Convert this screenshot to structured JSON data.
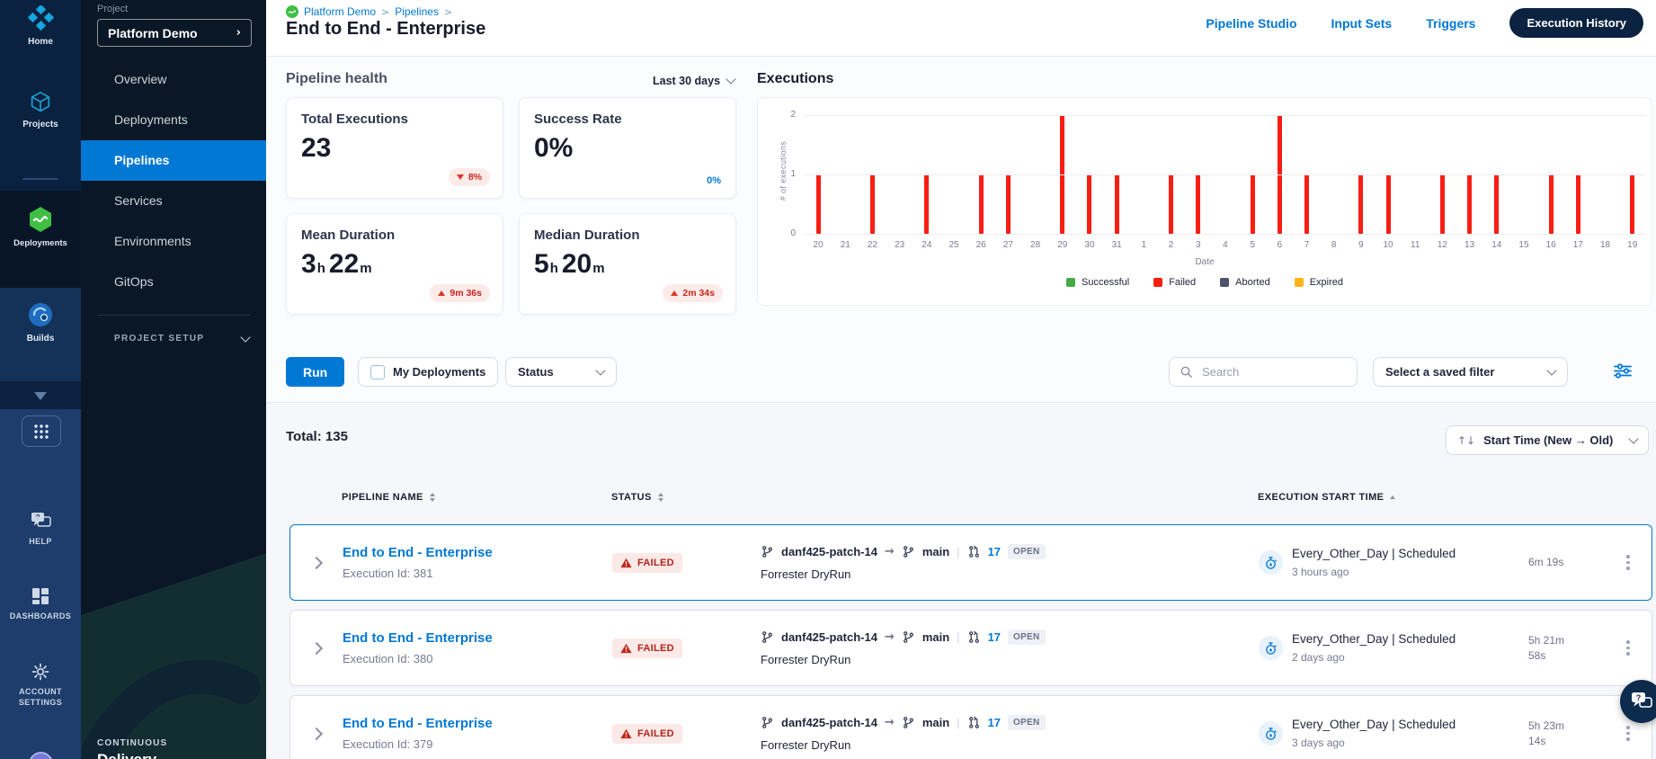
{
  "app": {
    "accent": "#0278d5",
    "failed_red": "#b3231a",
    "bar_red": "#f81e14"
  },
  "rail": {
    "items": [
      {
        "label": "Home",
        "icon": "harness-logo-icon"
      },
      {
        "label": "Projects",
        "icon": "projects-cube-icon"
      },
      {
        "label": "Deployments",
        "icon": "deployments-hexagon-icon"
      },
      {
        "label": "Builds",
        "icon": "builds-circle-icon"
      }
    ],
    "bottom_items": [
      {
        "label": "HELP",
        "icon": "help-chat-icon"
      },
      {
        "label": "DASHBOARDS",
        "icon": "dashboards-tiles-icon"
      },
      {
        "label": "ACCOUNT SETTINGS",
        "icon": "gear-icon"
      }
    ]
  },
  "sidebar": {
    "section_label": "Project",
    "project_selector": "Platform Demo",
    "items": [
      "Overview",
      "Deployments",
      "Pipelines",
      "Services",
      "Environments",
      "GitOps"
    ],
    "selected_item": "Pipelines",
    "project_setup_label": "PROJECT SETUP",
    "module_label": "CONTINUOUS",
    "module_name": "Delivery"
  },
  "header": {
    "breadcrumbs": [
      "Platform Demo",
      "Pipelines"
    ],
    "title": "End to End - Enterprise",
    "nav_links": [
      "Pipeline Studio",
      "Input Sets",
      "Triggers"
    ],
    "active_pill": "Execution History"
  },
  "health": {
    "title": "Pipeline health",
    "range": "Last 30 days",
    "cards": [
      {
        "label": "Total Executions",
        "value_parts": [
          [
            "23",
            ""
          ]
        ],
        "badge": {
          "dir": "down",
          "text": "8%"
        }
      },
      {
        "label": "Success Rate",
        "value_parts": [
          [
            "0%",
            ""
          ]
        ],
        "corner": "0%"
      },
      {
        "label": "Mean Duration",
        "value_parts": [
          [
            "3",
            "h"
          ],
          [
            "22",
            "m"
          ]
        ],
        "badge": {
          "dir": "up",
          "text": "9m 36s"
        }
      },
      {
        "label": "Median Duration",
        "value_parts": [
          [
            "5",
            "h"
          ],
          [
            "20",
            "m"
          ]
        ],
        "badge": {
          "dir": "up",
          "text": "2m 34s"
        }
      }
    ]
  },
  "chart_data": {
    "type": "bar",
    "title": "Executions",
    "xlabel": "Date",
    "ylabel": "# of executions",
    "ylim": [
      0,
      2
    ],
    "yticks": [
      0,
      1,
      2
    ],
    "grid": true,
    "legend_position": "bottom",
    "categories": [
      "20",
      "21",
      "22",
      "23",
      "24",
      "25",
      "26",
      "27",
      "28",
      "29",
      "30",
      "31",
      "1",
      "2",
      "3",
      "4",
      "5",
      "6",
      "7",
      "8",
      "9",
      "10",
      "11",
      "12",
      "13",
      "14",
      "15",
      "16",
      "17",
      "18",
      "19"
    ],
    "series": [
      {
        "name": "Failed",
        "color": "#f81e14",
        "values": [
          1,
          0,
          1,
          0,
          1,
          0,
          1,
          1,
          0,
          2,
          1,
          1,
          0,
          1,
          1,
          0,
          1,
          2,
          1,
          0,
          1,
          1,
          0,
          1,
          1,
          1,
          0,
          1,
          1,
          0,
          1
        ]
      }
    ],
    "legend": [
      {
        "label": "Successful",
        "color": "#42ab45"
      },
      {
        "label": "Failed",
        "color": "#f81e14"
      },
      {
        "label": "Aborted",
        "color": "#4f5368"
      },
      {
        "label": "Expired",
        "color": "#fcb519"
      }
    ]
  },
  "toolbar": {
    "run_label": "Run",
    "my_deployments_label": "My Deployments",
    "status_label": "Status",
    "search_placeholder": "Search",
    "saved_filter_label": "Select a saved filter"
  },
  "list": {
    "total_label": "Total: 135",
    "sort_label": "Start Time (New → Old)"
  },
  "table": {
    "columns": [
      {
        "label": "PIPELINE NAME",
        "sort": "both"
      },
      {
        "label": "STATUS",
        "sort": "both"
      },
      {
        "label": "EXECUTION START TIME",
        "sort": "asc"
      }
    ],
    "rows": [
      {
        "name": "End to End - Enterprise",
        "execution_id": "Execution Id: 381",
        "status": "FAILED",
        "source_branch": "danf425-patch-14",
        "target_branch": "main",
        "pr_number": "17",
        "pr_state": "OPEN",
        "tag": "Forrester DryRun",
        "trigger": "Every_Other_Day",
        "trigger_type": "Scheduled",
        "started": "3 hours ago",
        "duration_lines": [
          "6m 19s"
        ]
      },
      {
        "name": "End to End - Enterprise",
        "execution_id": "Execution Id: 380",
        "status": "FAILED",
        "source_branch": "danf425-patch-14",
        "target_branch": "main",
        "pr_number": "17",
        "pr_state": "OPEN",
        "tag": "Forrester DryRun",
        "trigger": "Every_Other_Day",
        "trigger_type": "Scheduled",
        "started": "2 days ago",
        "duration_lines": [
          "5h 21m",
          "58s"
        ]
      },
      {
        "name": "End to End - Enterprise",
        "execution_id": "Execution Id: 379",
        "status": "FAILED",
        "source_branch": "danf425-patch-14",
        "target_branch": "main",
        "pr_number": "17",
        "pr_state": "OPEN",
        "tag": "Forrester DryRun",
        "trigger": "Every_Other_Day",
        "trigger_type": "Scheduled",
        "started": "3 days ago",
        "duration_lines": [
          "5h 23m",
          "14s"
        ]
      }
    ]
  }
}
